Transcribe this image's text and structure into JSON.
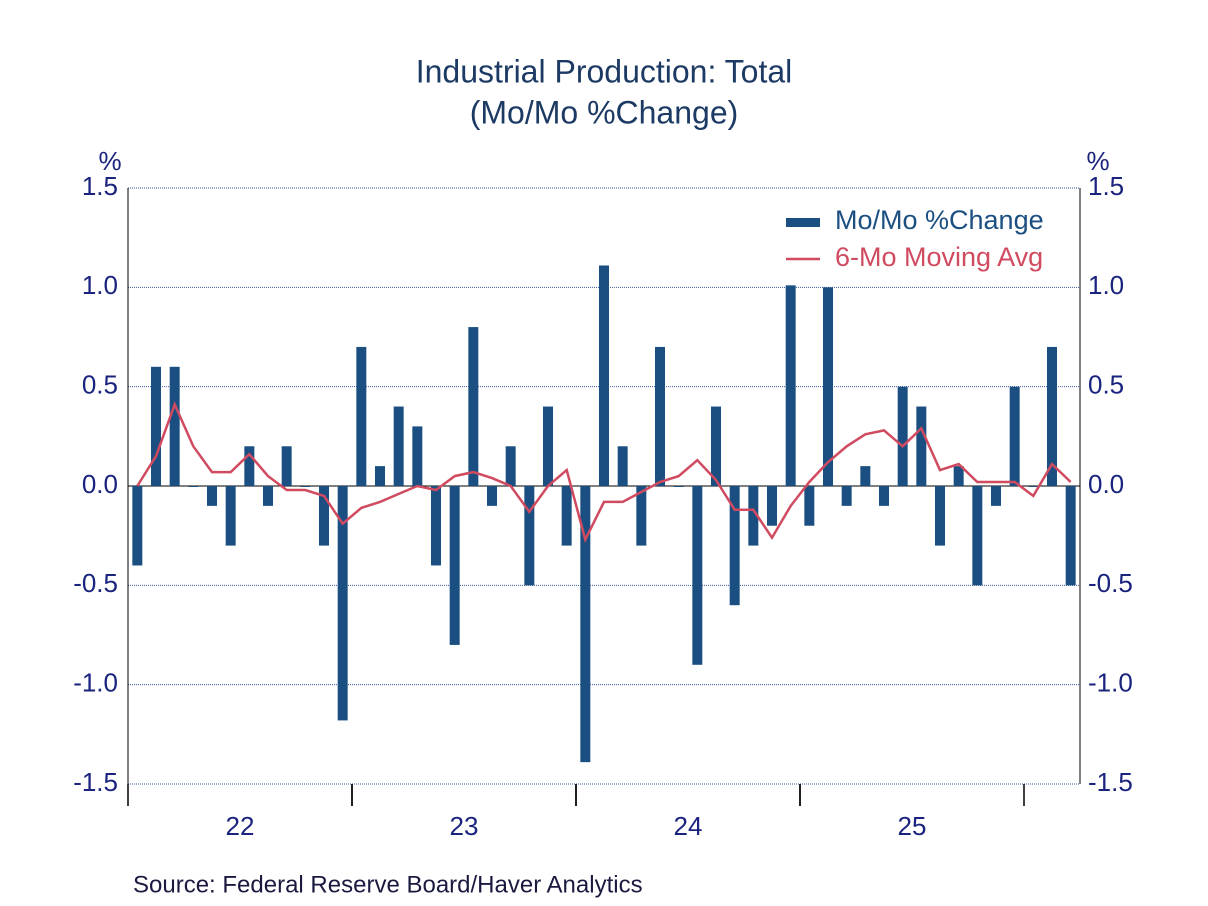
{
  "chart_data": {
    "type": "bar_line",
    "title": "Industrial Production: Total",
    "subtitle": "(Mo/Mo %Change)",
    "y_unit": "%",
    "source": "Source:  Federal Reserve Board/Haver Analytics",
    "categories": [
      null,
      null,
      null,
      null,
      null,
      null,
      "22",
      null,
      null,
      null,
      null,
      null,
      null,
      null,
      null,
      null,
      null,
      null,
      "23",
      null,
      null,
      null,
      null,
      null,
      null,
      null,
      null,
      null,
      null,
      null,
      "24",
      null,
      null,
      null,
      null,
      null,
      null,
      null,
      null,
      null,
      null,
      null,
      "25",
      null,
      null,
      null,
      null,
      null,
      null,
      null,
      null
    ],
    "series": [
      {
        "name": "Mo/Mo %Change",
        "type": "bar",
        "color": "#1b4f82",
        "values": [
          -0.4,
          0.6,
          0.6,
          0.0,
          -0.1,
          -0.3,
          0.2,
          -0.1,
          0.2,
          0.0,
          -0.3,
          -1.18,
          0.7,
          0.1,
          0.4,
          0.3,
          -0.4,
          -0.8,
          0.8,
          -0.1,
          0.2,
          -0.5,
          0.4,
          -0.3,
          -1.39,
          1.11,
          0.2,
          -0.3,
          0.7,
          0.0,
          -0.9,
          0.4,
          -0.6,
          -0.3,
          -0.2,
          1.01,
          -0.2,
          1.0,
          -0.1,
          0.1,
          -0.1,
          0.5,
          0.4,
          -0.3,
          0.1,
          -0.5,
          -0.1,
          0.5,
          0.0,
          0.7,
          -0.5
        ]
      },
      {
        "name": "6-Mo Moving Avg",
        "type": "line",
        "color": "#d04a60",
        "values": [
          0.0,
          0.15,
          0.41,
          0.2,
          0.07,
          0.07,
          0.16,
          0.05,
          -0.02,
          -0.02,
          -0.05,
          -0.19,
          -0.11,
          -0.08,
          -0.04,
          0.0,
          -0.02,
          0.05,
          0.07,
          0.04,
          0.0,
          -0.13,
          0.0,
          0.08,
          -0.27,
          -0.08,
          -0.08,
          -0.03,
          0.02,
          0.05,
          0.13,
          0.03,
          -0.12,
          -0.12,
          -0.26,
          -0.1,
          0.02,
          0.12,
          0.2,
          0.26,
          0.28,
          0.2,
          0.29,
          0.08,
          0.11,
          0.02,
          0.02,
          0.02,
          -0.05,
          0.11,
          0.02
        ]
      }
    ],
    "ylim": [
      -1.5,
      1.5
    ],
    "yticks": [
      {
        "value": -1.5,
        "label": "-1.5"
      },
      {
        "value": -1,
        "label": "-1.0"
      },
      {
        "value": -0.5,
        "label": "-0.5"
      },
      {
        "value": 0,
        "label": "0.0"
      },
      {
        "value": 0.5,
        "label": "0.5"
      },
      {
        "value": 1,
        "label": "1.0"
      },
      {
        "value": 1.5,
        "label": "1.5"
      }
    ],
    "grid": true,
    "legend": "top-right"
  }
}
